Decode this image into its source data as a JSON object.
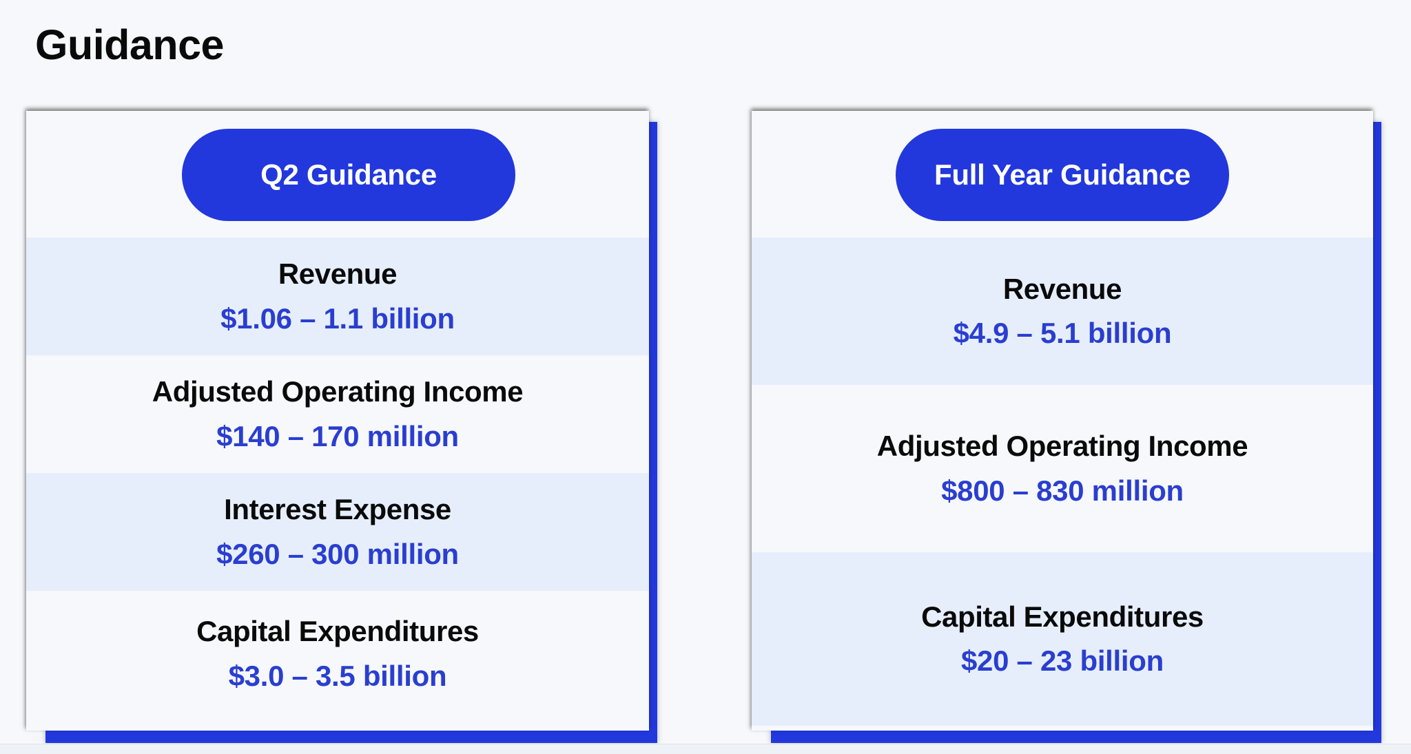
{
  "title": "Guidance",
  "q2": {
    "heading": "Q2 Guidance",
    "items": [
      {
        "label": "Revenue",
        "value": "$1.06 – 1.1 billion"
      },
      {
        "label": "Adjusted Operating Income",
        "value": "$140 – 170 million"
      },
      {
        "label": "Interest Expense",
        "value": "$260 – 300 million"
      },
      {
        "label": "Capital Expenditures",
        "value": "$3.0 – 3.5 billion"
      }
    ]
  },
  "full_year": {
    "heading": "Full Year Guidance",
    "items": [
      {
        "label": "Revenue",
        "value": "$4.9 – 5.1 billion"
      },
      {
        "label": "Adjusted Operating Income",
        "value": "$800 – 830 million"
      },
      {
        "label": "Capital Expenditures",
        "value": "$20 – 23 billion"
      }
    ]
  },
  "colors": {
    "accent": "#2238dc",
    "value_text": "#2a3ed0",
    "row_shade": "#e6eefc",
    "background": "#f6f8fb"
  }
}
